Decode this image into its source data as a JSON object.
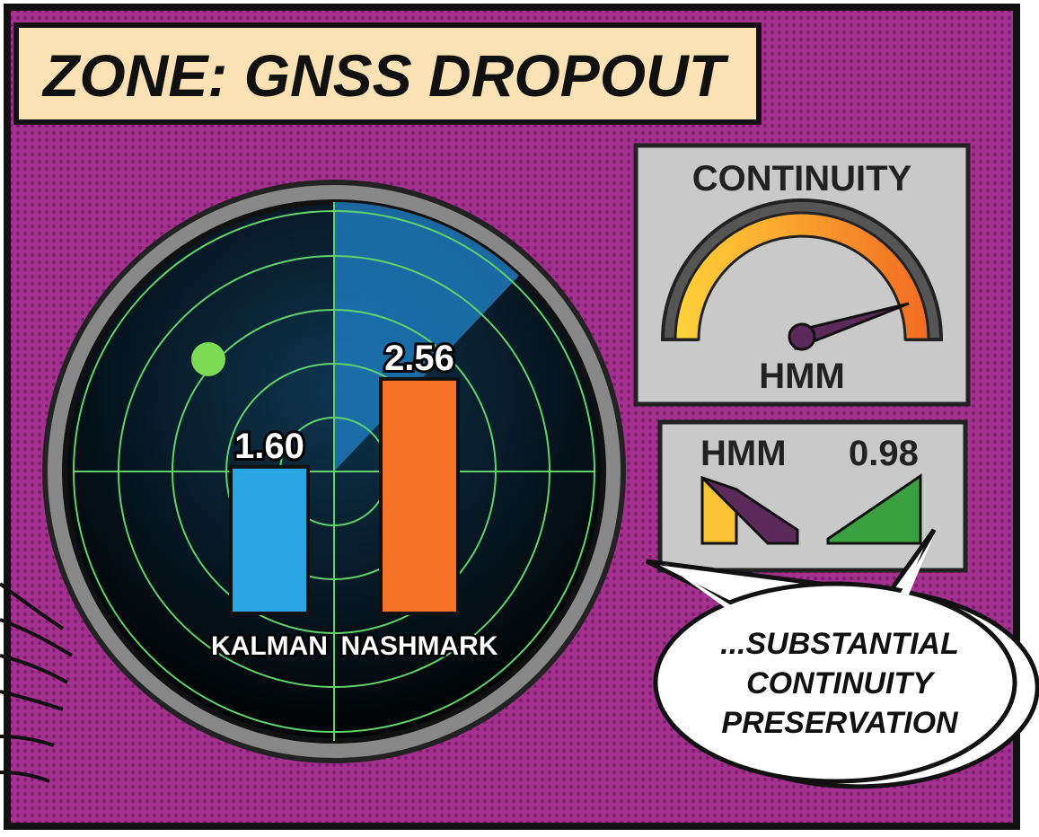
{
  "chart_data": {
    "type": "bar",
    "categories": [
      "KALMAN",
      "NASHMARK"
    ],
    "values": [
      1.6,
      2.56
    ],
    "value_labels": [
      "1.60",
      "2.56"
    ],
    "colors": [
      "#2aa6e2",
      "#f47327"
    ]
  },
  "header": {
    "title": "ZONE: GNSS DROPOUT"
  },
  "gauge": {
    "title": "CONTINUITY",
    "label": "HMM"
  },
  "comparison": {
    "left": "HMM",
    "right": "0.98"
  },
  "bubble": {
    "lines": [
      "...SUBSTANTIAL",
      "CONTINUITY",
      "PRESERVATION"
    ]
  }
}
